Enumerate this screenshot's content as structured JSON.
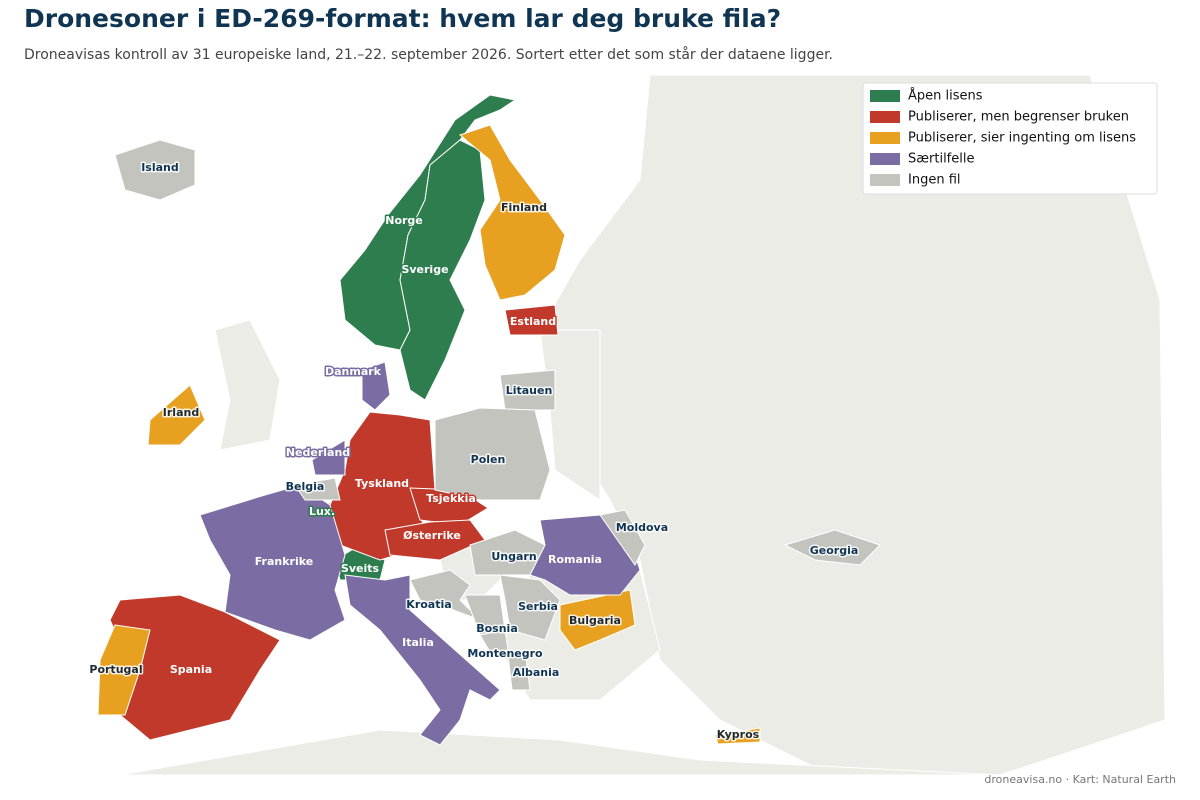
{
  "header": {
    "title": "Dronesoner i ED-269-format: hvem lar deg bruke fila?",
    "subtitle": "Droneavisas kontroll av 31 europeiske land, 21.–22. september 2026. Sortert etter det som står der dataene ligger."
  },
  "groups": [
    {
      "name": "Åpen lisens",
      "color": "#2e7d4f",
      "countries": [
        "Norge",
        "Sverige",
        "Sveits",
        "Lux."
      ]
    },
    {
      "name": "Publiserer, men begrenser bruken",
      "color": "#c0392b",
      "countries": [
        "Estland",
        "Tyskland",
        "Tsjekkia",
        "Østerrike",
        "Spania"
      ]
    },
    {
      "name": "Publiserer, sier ingenting om lisens",
      "color": "#e8a020",
      "countries": [
        "Finland",
        "Irland",
        "Portugal",
        "Bulgaria",
        "Kypros"
      ]
    },
    {
      "name": "Særtilfelle",
      "color": "#7b6ca3",
      "countries": [
        "Danmark",
        "Nederland",
        "Frankrike",
        "Romania",
        "Italia"
      ]
    },
    {
      "name": "Ingen fil",
      "color": "#c4c4bf",
      "countries": [
        "Island",
        "Litauen",
        "Polen",
        "Belgia",
        "Moldova",
        "Georgia",
        "Ungarn",
        "Kroatia",
        "Serbia",
        "Bosnia",
        "Montenegro",
        "Albania"
      ]
    }
  ],
  "footer": "droneavisa.no · Kart: Natural Earth"
}
